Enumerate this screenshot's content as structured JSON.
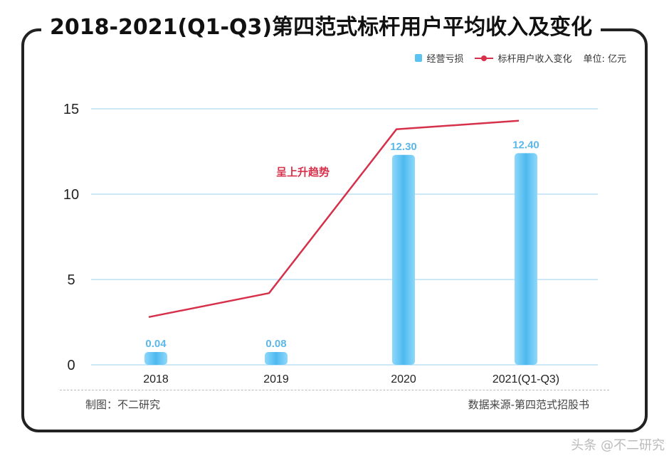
{
  "title": "2018-2021(Q1-Q3)第四范式标杆用户平均收入及变化",
  "legend": {
    "bar_label": "经营亏损",
    "line_label": "标杆用户收入变化",
    "unit": "单位: 亿元"
  },
  "annotation": "呈上升趋势",
  "footer": {
    "left": "制图：不二研究",
    "right": "数据来源-第四范式招股书"
  },
  "watermark": "头条 @不二研究",
  "colors": {
    "bar": "#5bc3f2",
    "bar_label": "#5bb8e8",
    "line": "#d6304a",
    "grid": "#cde9f7"
  },
  "chart_data": {
    "type": "bar",
    "title": "2018-2021(Q1-Q3)第四范式标杆用户平均收入及变化",
    "categories": [
      "2018",
      "2019",
      "2020",
      "2021(Q1-Q3)"
    ],
    "series": [
      {
        "name": "经营亏损",
        "type": "bar",
        "values": [
          0.04,
          0.08,
          12.3,
          12.4
        ],
        "labels": [
          "0.04",
          "0.08",
          "12.30",
          "12.40"
        ]
      },
      {
        "name": "标杆用户收入变化",
        "type": "line",
        "values": [
          2.8,
          4.2,
          13.8,
          14.3
        ]
      }
    ],
    "yticks": [
      0,
      5,
      10,
      15
    ],
    "ylim": [
      0,
      15
    ],
    "xlabel": "",
    "ylabel": "",
    "grid": true,
    "legend_position": "top-right"
  }
}
